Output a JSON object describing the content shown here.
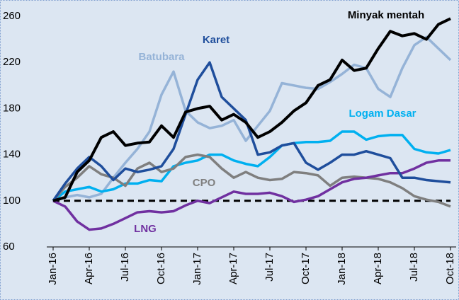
{
  "chart_data": {
    "type": "line",
    "categories": [
      "Jan-16",
      null,
      null,
      "Apr-16",
      null,
      null,
      "Jul-16",
      null,
      null,
      "Oct-16",
      null,
      null,
      "Jan-17",
      null,
      null,
      "Apr-17",
      null,
      null,
      "Jul-17",
      null,
      null,
      "Oct-17",
      null,
      null,
      "Jan-18",
      null,
      null,
      "Apr-18",
      null,
      null,
      "Jul-18",
      null,
      null,
      "Oct-18"
    ],
    "series": [
      {
        "name": "Batubara",
        "color": "#95b3d7",
        "values": [
          100,
          103,
          105,
          103,
          106,
          120,
          133,
          145,
          160,
          192,
          212,
          178,
          168,
          163,
          165,
          170,
          152,
          165,
          178,
          202,
          200,
          198,
          197,
          203,
          210,
          218,
          215,
          197,
          190,
          215,
          235,
          242,
          232,
          222
        ]
      },
      {
        "name": "Logam Dasar",
        "color": "#00b0f0",
        "values": [
          100,
          108,
          110,
          112,
          108,
          110,
          115,
          115,
          118,
          117,
          130,
          133,
          135,
          140,
          140,
          135,
          132,
          130,
          138,
          148,
          150,
          151,
          151,
          152,
          160,
          160,
          153,
          156,
          157,
          157,
          145,
          142,
          141,
          144
        ]
      },
      {
        "name": "CPO",
        "color": "#7f7f7f",
        "values": [
          100,
          112,
          120,
          130,
          123,
          120,
          113,
          128,
          133,
          125,
          128,
          138,
          140,
          138,
          128,
          120,
          125,
          120,
          118,
          119,
          125,
          124,
          122,
          113,
          120,
          121,
          120,
          119,
          116,
          111,
          104,
          101,
          99,
          95
        ]
      },
      {
        "name": "LNG",
        "color": "#7030a0",
        "values": [
          100,
          95,
          82,
          75,
          76,
          80,
          85,
          90,
          91,
          90,
          91,
          96,
          100,
          98,
          103,
          108,
          106,
          106,
          107,
          104,
          99,
          101,
          104,
          110,
          116,
          119,
          120,
          122,
          124,
          124,
          128,
          133,
          135,
          135
        ]
      },
      {
        "name": "Karet",
        "color": "#1f4e9c",
        "values": [
          100,
          115,
          128,
          138,
          130,
          118,
          128,
          125,
          127,
          130,
          145,
          175,
          205,
          220,
          190,
          180,
          170,
          140,
          142,
          148,
          150,
          133,
          127,
          133,
          140,
          140,
          143,
          140,
          137,
          120,
          120,
          118,
          117,
          116
        ]
      },
      {
        "name": "Minyak mentah",
        "color": "#000000",
        "values": [
          100,
          103,
          125,
          135,
          155,
          160,
          148,
          150,
          151,
          165,
          155,
          177,
          180,
          182,
          170,
          175,
          168,
          155,
          160,
          168,
          178,
          185,
          200,
          205,
          222,
          213,
          215,
          232,
          247,
          243,
          245,
          240,
          253,
          258
        ]
      }
    ],
    "reference_line": 100,
    "ylim": [
      60,
      260
    ],
    "yticks": [
      60,
      100,
      140,
      180,
      220,
      260
    ]
  }
}
